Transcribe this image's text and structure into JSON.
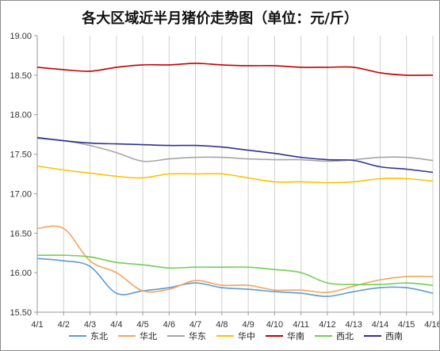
{
  "chart_data": {
    "type": "line",
    "title": "各大区域近半月猪价走势图（单位：元/斤）",
    "xlabel": "",
    "ylabel": "",
    "categories": [
      "4/1",
      "4/2",
      "4/3",
      "4/4",
      "4/5",
      "4/6",
      "4/7",
      "4/8",
      "4/9",
      "4/10",
      "4/11",
      "4/12",
      "4/13",
      "4/14",
      "4/15",
      "4/16"
    ],
    "ylim": [
      15.5,
      19.0
    ],
    "yticks": [
      "15.50",
      "16.00",
      "16.50",
      "17.00",
      "17.50",
      "18.00",
      "18.50",
      "19.00"
    ],
    "grid": "vertical",
    "legend_position": "bottom",
    "series": [
      {
        "name": "东北",
        "color": "#5b9bd5",
        "values": [
          16.18,
          16.15,
          16.08,
          15.74,
          15.77,
          15.81,
          15.87,
          15.81,
          15.79,
          15.76,
          15.74,
          15.7,
          15.76,
          15.81,
          15.81,
          15.74
        ]
      },
      {
        "name": "华北",
        "color": "#f4a55a",
        "values": [
          16.56,
          16.56,
          16.15,
          16.0,
          15.77,
          15.79,
          15.9,
          15.84,
          15.84,
          15.78,
          15.78,
          15.75,
          15.83,
          15.91,
          15.95,
          15.95
        ]
      },
      {
        "name": "华东",
        "color": "#a5a5a5",
        "values": [
          17.7,
          17.67,
          17.61,
          17.52,
          17.41,
          17.44,
          17.46,
          17.46,
          17.44,
          17.43,
          17.43,
          17.41,
          17.43,
          17.46,
          17.46,
          17.42
        ]
      },
      {
        "name": "华中",
        "color": "#ffc000",
        "values": [
          17.35,
          17.3,
          17.26,
          17.22,
          17.2,
          17.25,
          17.25,
          17.25,
          17.2,
          17.15,
          17.15,
          17.14,
          17.15,
          17.19,
          17.19,
          17.16
        ]
      },
      {
        "name": "华南",
        "color": "#c00000",
        "values": [
          18.6,
          18.57,
          18.55,
          18.6,
          18.63,
          18.63,
          18.65,
          18.63,
          18.62,
          18.62,
          18.6,
          18.6,
          18.6,
          18.53,
          18.5,
          18.5
        ]
      },
      {
        "name": "西北",
        "color": "#70d050",
        "values": [
          16.22,
          16.22,
          16.2,
          16.13,
          16.1,
          16.06,
          16.07,
          16.07,
          16.07,
          16.04,
          16.0,
          15.87,
          15.85,
          15.85,
          15.87,
          15.84
        ]
      },
      {
        "name": "西南",
        "color": "#2e3192",
        "values": [
          17.71,
          17.67,
          17.64,
          17.63,
          17.62,
          17.61,
          17.61,
          17.59,
          17.55,
          17.51,
          17.46,
          17.43,
          17.42,
          17.34,
          17.31,
          17.27
        ]
      }
    ]
  }
}
